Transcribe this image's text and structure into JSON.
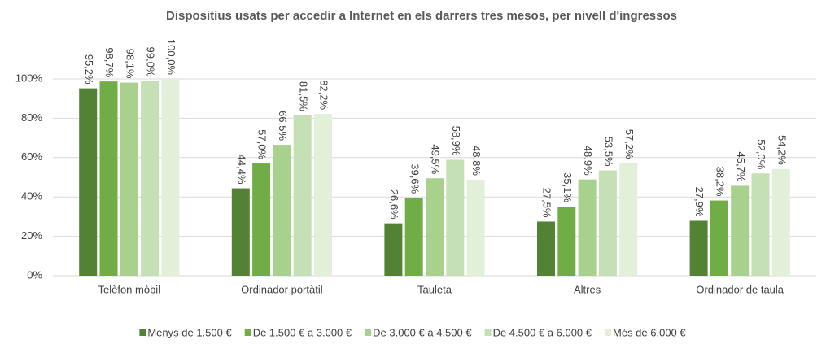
{
  "chart_data": {
    "type": "bar",
    "title": "Dispositius usats per accedir a Internet en els darrers tres mesos, per nivell d'ingressos",
    "categories": [
      "Telèfon mòbil",
      "Ordinador portàtil",
      "Tauleta",
      "Altres",
      "Ordinador de taula"
    ],
    "series": [
      {
        "name": "Menys de 1.500 €",
        "color": "#548235",
        "values": [
          95.2,
          44.4,
          26.6,
          27.5,
          27.9
        ],
        "value_labels": [
          "95,2%",
          "44,4%",
          "26,6%",
          "27,5%",
          "27,9%"
        ]
      },
      {
        "name": "De 1.500 € a 3.000 €",
        "color": "#70ad47",
        "values": [
          98.7,
          57.0,
          39.6,
          35.1,
          38.2
        ],
        "value_labels": [
          "98,7%",
          "57,0%",
          "39,6%",
          "35,1%",
          "38,2%"
        ]
      },
      {
        "name": "De 3.000 € a 4.500 €",
        "color": "#a9d18e",
        "values": [
          98.1,
          66.5,
          49.5,
          48.9,
          45.7
        ],
        "value_labels": [
          "98,1%",
          "66,5%",
          "49,5%",
          "48,9%",
          "45,7%"
        ]
      },
      {
        "name": "De 4.500 € a 6.000 €",
        "color": "#c5e0b4",
        "values": [
          99.0,
          81.5,
          58.9,
          53.5,
          52.0
        ],
        "value_labels": [
          "99,0%",
          "81,5%",
          "58,9%",
          "53,5%",
          "52,0%"
        ]
      },
      {
        "name": "Més de 6.000 €",
        "color": "#e2f0d9",
        "values": [
          100.0,
          82.2,
          48.8,
          57.2,
          54.2
        ],
        "value_labels": [
          "100,0%",
          "82,2%",
          "48,8%",
          "57,2%",
          "54,2%"
        ]
      }
    ],
    "ylim": [
      0,
      100
    ],
    "yticks": [
      {
        "value": 0,
        "label": "0%"
      },
      {
        "value": 20,
        "label": "20%"
      },
      {
        "value": 40,
        "label": "40%"
      },
      {
        "value": 60,
        "label": "60%"
      },
      {
        "value": 80,
        "label": "80%"
      },
      {
        "value": 100,
        "label": "100%"
      }
    ],
    "grid": true,
    "legend": "bottom"
  }
}
